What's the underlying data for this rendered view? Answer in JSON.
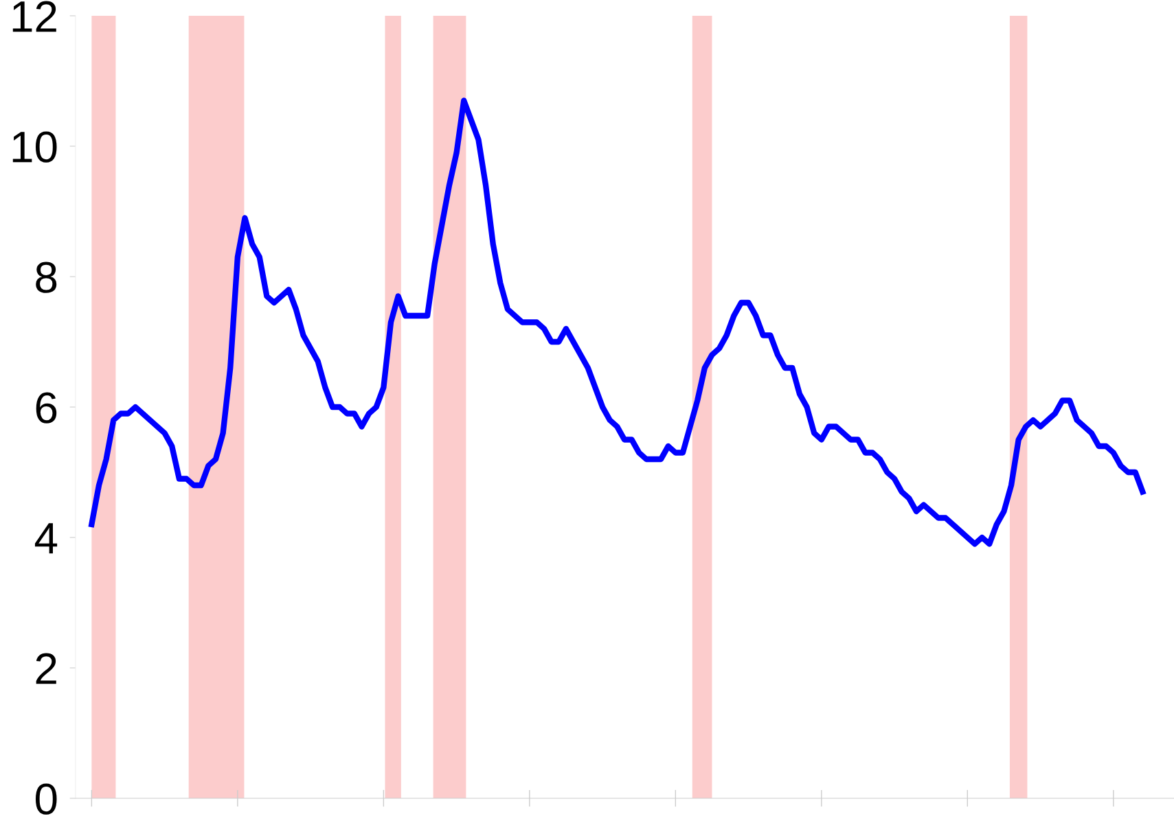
{
  "chart_data": {
    "type": "line",
    "categories": [
      null,
      null,
      null,
      null,
      null,
      null,
      null,
      null,
      null,
      null,
      null,
      null,
      null,
      null,
      null,
      null,
      null,
      null,
      null,
      null,
      null,
      null,
      null,
      null,
      null,
      null,
      null,
      null,
      null,
      null,
      null,
      null,
      null,
      null,
      null,
      null,
      null,
      null,
      null,
      null,
      null,
      null,
      null,
      null,
      null,
      null,
      null,
      null,
      null,
      null,
      null,
      null,
      null,
      null,
      null,
      null,
      null,
      null,
      null,
      null,
      null,
      null,
      null,
      null,
      null,
      null,
      null,
      null,
      null,
      null,
      null,
      null,
      null,
      null,
      null,
      null,
      null,
      null,
      null,
      null,
      null,
      null,
      null,
      null,
      null,
      null,
      null,
      null,
      null,
      null,
      null,
      null,
      null,
      null,
      null,
      null,
      null,
      null,
      null,
      null,
      null,
      null,
      null,
      null,
      null,
      null,
      null,
      null,
      null,
      null,
      null,
      null,
      null,
      null,
      null,
      null,
      null,
      null,
      null,
      null,
      null,
      null,
      null,
      null,
      null,
      null,
      null,
      null,
      null,
      null,
      null,
      null,
      null,
      null,
      null,
      null,
      null,
      null,
      null,
      null,
      null,
      null,
      null,
      null,
      null
    ],
    "series": [
      {
        "color": "#0000ff",
        "values": [
          4.2,
          4.8,
          5.2,
          5.8,
          5.9,
          5.9,
          6.0,
          5.9,
          5.8,
          5.7,
          5.6,
          5.4,
          4.9,
          4.9,
          4.8,
          4.8,
          5.1,
          5.2,
          5.6,
          6.6,
          8.3,
          8.9,
          8.5,
          8.3,
          7.7,
          7.6,
          7.7,
          7.8,
          7.5,
          7.1,
          6.9,
          6.7,
          6.3,
          6.0,
          6.0,
          5.9,
          5.9,
          5.7,
          5.9,
          6.0,
          6.3,
          7.3,
          7.7,
          7.4,
          7.4,
          7.4,
          7.4,
          8.2,
          8.8,
          9.4,
          9.9,
          10.7,
          10.4,
          10.1,
          9.4,
          8.5,
          7.9,
          7.5,
          7.4,
          7.3,
          7.3,
          7.3,
          7.2,
          7.0,
          7.0,
          7.2,
          7.0,
          6.8,
          6.6,
          6.3,
          6.0,
          5.8,
          5.7,
          5.5,
          5.5,
          5.3,
          5.2,
          5.2,
          5.2,
          5.4,
          5.3,
          5.3,
          5.7,
          6.1,
          6.6,
          6.8,
          6.9,
          7.1,
          7.4,
          7.6,
          7.6,
          7.4,
          7.1,
          7.1,
          6.8,
          6.6,
          6.6,
          6.2,
          6.0,
          5.6,
          5.5,
          5.7,
          5.7,
          5.6,
          5.5,
          5.5,
          5.3,
          5.3,
          5.2,
          5.0,
          4.9,
          4.7,
          4.6,
          4.4,
          4.5,
          4.4,
          4.3,
          4.3,
          4.2,
          4.1,
          4.0,
          3.9,
          4.0,
          3.9,
          4.2,
          4.4,
          4.8,
          5.5,
          5.7,
          5.8,
          5.7,
          5.8,
          5.9,
          6.1,
          6.1,
          5.8,
          5.7,
          5.6,
          5.4,
          5.4,
          5.3,
          5.1,
          5.0,
          5.0,
          4.7
        ]
      }
    ],
    "ylim": [
      0,
      12
    ],
    "yticks": [
      0,
      2,
      4,
      6,
      8,
      10,
      12
    ],
    "grid": false,
    "legend": false,
    "line_style": "solid",
    "marker": "none"
  }
}
